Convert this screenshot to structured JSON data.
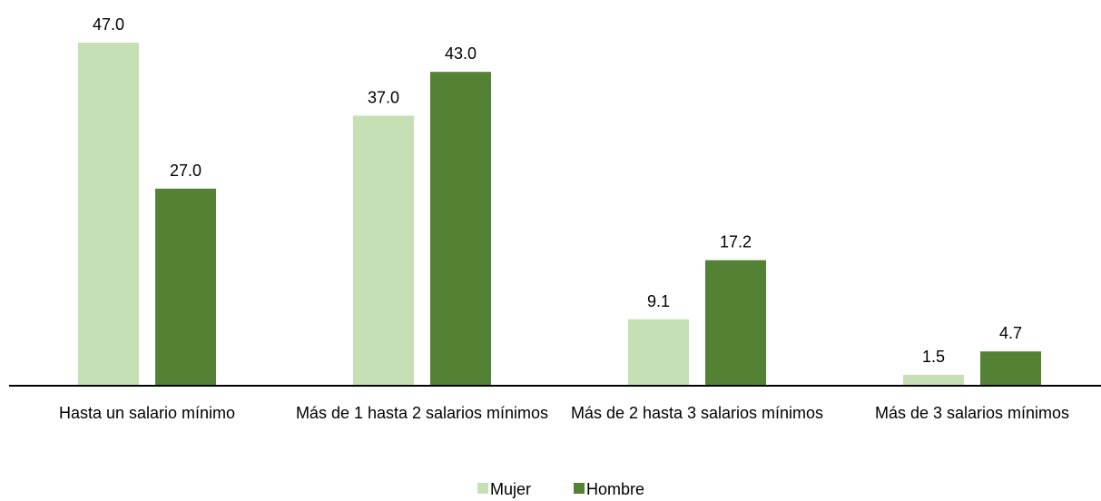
{
  "chart_data": {
    "type": "bar",
    "categories": [
      "Hasta un salario mínimo",
      "Más de 1 hasta 2 salarios mínimos",
      "Más de 2 hasta 3 salarios mínimos",
      "Más de 3 salarios mínimos"
    ],
    "series": [
      {
        "name": "Mujer",
        "color": "#c5e0b4",
        "values": [
          47.0,
          37.0,
          9.1,
          1.5
        ],
        "value_labels": [
          "47.0",
          "37.0",
          "9.1",
          "1.5"
        ]
      },
      {
        "name": "Hombre",
        "color": "#548235",
        "values": [
          27.0,
          43.0,
          17.2,
          4.7
        ],
        "value_labels": [
          "27.0",
          "43.0",
          "17.2",
          "4.7"
        ]
      }
    ],
    "legend": "bottom"
  }
}
